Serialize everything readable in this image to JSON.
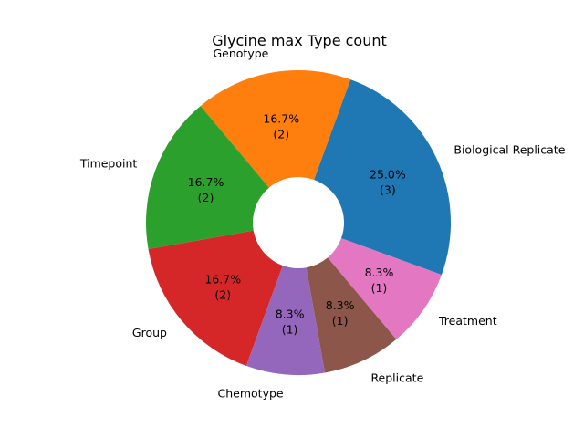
{
  "chart_data": {
    "type": "pie",
    "variant": "donut",
    "title": "Glycine max Type count",
    "categories": [
      "Biological Replicate",
      "Genotype",
      "Timepoint",
      "Group",
      "Chemotype",
      "Replicate",
      "Treatment"
    ],
    "values": [
      3,
      2,
      2,
      2,
      1,
      1,
      1
    ],
    "percent_labels": [
      "25.0%",
      "16.7%",
      "16.7%",
      "16.7%",
      "8.3%",
      "8.3%",
      "8.3%"
    ],
    "count_labels": [
      "(3)",
      "(2)",
      "(2)",
      "(2)",
      "(1)",
      "(1)",
      "(1)"
    ],
    "colors": [
      "#1f77b4",
      "#ff7f0e",
      "#2ca02c",
      "#d62728",
      "#9467bd",
      "#8c564b",
      "#e377c2"
    ],
    "start_angle_deg": -20,
    "direction": "counterclockwise",
    "legend": "none"
  }
}
